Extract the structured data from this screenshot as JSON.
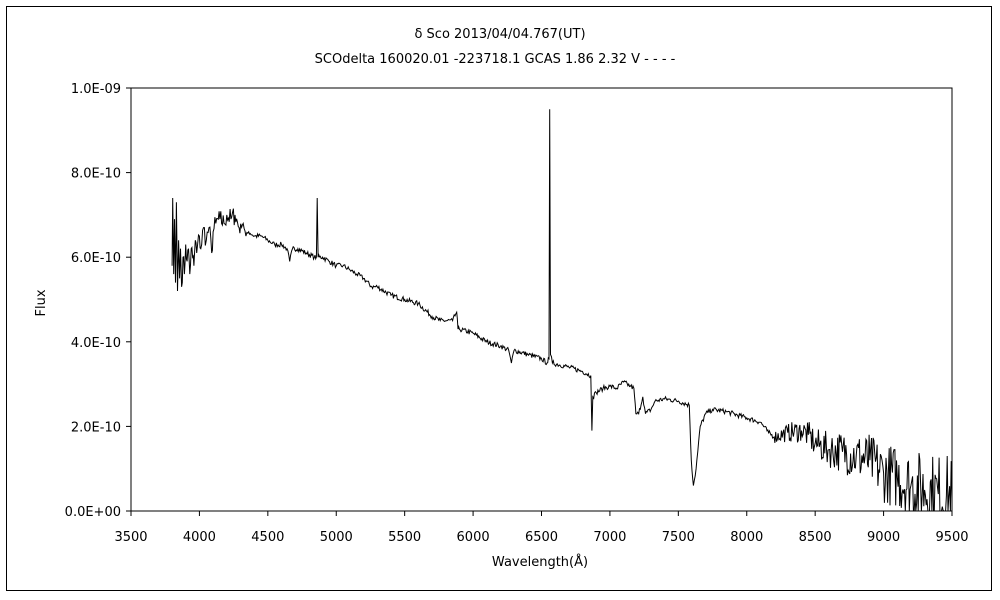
{
  "chart_data": {
    "type": "line",
    "title": "δ  Sco    2013/04/04.767(UT)",
    "subtitle": "SCOdelta 160020.01 -223718.1 GCAS 1.86 2.32 V - - - -",
    "xlabel": "Wavelength(Å)",
    "ylabel": "Flux",
    "xlim": [
      3500,
      9500
    ],
    "ylim": [
      0,
      1e-09
    ],
    "y_unit_scale": 1e-10,
    "grid": false,
    "line_color": "#000000",
    "x_ticks": [
      "3500",
      "4000",
      "4500",
      "5000",
      "5500",
      "6000",
      "6500",
      "7000",
      "7500",
      "8000",
      "8500",
      "9000",
      "9500"
    ],
    "x_tick_values": [
      3500,
      4000,
      4500,
      5000,
      5500,
      6000,
      6500,
      7000,
      7500,
      8000,
      8500,
      9000,
      9500
    ],
    "y_ticks": [
      "0.0E+00",
      "2.0E-10",
      "4.0E-10",
      "6.0E-10",
      "8.0E-10",
      "1.0E-09"
    ],
    "y_tick_values": [
      0,
      2,
      4,
      6,
      8,
      10
    ],
    "series": [
      {
        "name": "Flux",
        "points": [
          [
            3800,
            5.8
          ],
          [
            3805,
            7.4
          ],
          [
            3812,
            5.6
          ],
          [
            3818,
            6.9
          ],
          [
            3825,
            5.4
          ],
          [
            3832,
            7.3
          ],
          [
            3840,
            5.2
          ],
          [
            3848,
            6.4
          ],
          [
            3855,
            5.5
          ],
          [
            3862,
            6.2
          ],
          [
            3870,
            5.3
          ],
          [
            3880,
            6.0
          ],
          [
            3890,
            5.6
          ],
          [
            3900,
            6.3
          ],
          [
            3910,
            5.9
          ],
          [
            3920,
            6.2
          ],
          [
            3930,
            5.6
          ],
          [
            3940,
            6.2
          ],
          [
            3950,
            6.0
          ],
          [
            3960,
            5.8
          ],
          [
            3970,
            6.4
          ],
          [
            3980,
            6.1
          ],
          [
            4000,
            6.5
          ],
          [
            4010,
            6.2
          ],
          [
            4030,
            6.7
          ],
          [
            4050,
            6.4
          ],
          [
            4070,
            6.7
          ],
          [
            4090,
            6.1
          ],
          [
            4100,
            6.6
          ],
          [
            4120,
            6.8
          ],
          [
            4150,
            6.9
          ],
          [
            4180,
            6.8
          ],
          [
            4200,
            7.0
          ],
          [
            4230,
            6.9
          ],
          [
            4260,
            7.0
          ],
          [
            4290,
            6.7
          ],
          [
            4320,
            6.8
          ],
          [
            4340,
            6.5
          ],
          [
            4360,
            6.6
          ],
          [
            4400,
            6.5
          ],
          [
            4450,
            6.5
          ],
          [
            4500,
            6.4
          ],
          [
            4550,
            6.3
          ],
          [
            4600,
            6.3
          ],
          [
            4640,
            6.2
          ],
          [
            4660,
            5.9
          ],
          [
            4680,
            6.2
          ],
          [
            4720,
            6.2
          ],
          [
            4780,
            6.1
          ],
          [
            4840,
            6.0
          ],
          [
            4855,
            6.0
          ],
          [
            4861,
            7.4
          ],
          [
            4867,
            6.0
          ],
          [
            4900,
            6.0
          ],
          [
            4950,
            5.9
          ],
          [
            5000,
            5.8
          ],
          [
            5050,
            5.8
          ],
          [
            5100,
            5.7
          ],
          [
            5150,
            5.6
          ],
          [
            5200,
            5.5
          ],
          [
            5260,
            5.3
          ],
          [
            5300,
            5.3
          ],
          [
            5400,
            5.1
          ],
          [
            5500,
            5.0
          ],
          [
            5600,
            4.9
          ],
          [
            5700,
            4.6
          ],
          [
            5760,
            4.5
          ],
          [
            5850,
            4.5
          ],
          [
            5880,
            4.7
          ],
          [
            5890,
            4.3
          ],
          [
            5900,
            4.3
          ],
          [
            6000,
            4.2
          ],
          [
            6100,
            4.0
          ],
          [
            6200,
            3.9
          ],
          [
            6260,
            3.8
          ],
          [
            6280,
            3.5
          ],
          [
            6300,
            3.8
          ],
          [
            6400,
            3.7
          ],
          [
            6500,
            3.6
          ],
          [
            6540,
            3.5
          ],
          [
            6555,
            3.6
          ],
          [
            6560,
            9.5
          ],
          [
            6566,
            3.7
          ],
          [
            6580,
            3.5
          ],
          [
            6700,
            3.4
          ],
          [
            6800,
            3.3
          ],
          [
            6860,
            3.2
          ],
          [
            6868,
            1.9
          ],
          [
            6875,
            2.7
          ],
          [
            6900,
            2.8
          ],
          [
            6950,
            2.9
          ],
          [
            7000,
            2.95
          ],
          [
            7050,
            2.9
          ],
          [
            7100,
            3.05
          ],
          [
            7150,
            2.95
          ],
          [
            7175,
            2.9
          ],
          [
            7190,
            2.3
          ],
          [
            7210,
            2.3
          ],
          [
            7240,
            2.7
          ],
          [
            7260,
            2.3
          ],
          [
            7300,
            2.4
          ],
          [
            7330,
            2.6
          ],
          [
            7400,
            2.65
          ],
          [
            7500,
            2.6
          ],
          [
            7580,
            2.5
          ],
          [
            7595,
            1.2
          ],
          [
            7610,
            0.6
          ],
          [
            7630,
            1.0
          ],
          [
            7660,
            2.0
          ],
          [
            7700,
            2.3
          ],
          [
            7750,
            2.4
          ],
          [
            7850,
            2.35
          ],
          [
            8000,
            2.2
          ],
          [
            8100,
            2.1
          ],
          [
            8160,
            1.85
          ],
          [
            8200,
            1.75
          ],
          [
            8300,
            1.85
          ],
          [
            8400,
            1.9
          ],
          [
            8450,
            1.8
          ],
          [
            8500,
            1.6
          ],
          [
            8600,
            1.45
          ],
          [
            8700,
            1.4
          ],
          [
            8800,
            1.3
          ],
          [
            8900,
            1.2
          ],
          [
            9000,
            0.9
          ],
          [
            9100,
            0.8
          ],
          [
            9200,
            0.6
          ],
          [
            9300,
            0.5
          ],
          [
            9400,
            0.4
          ],
          [
            9500,
            0.3
          ]
        ]
      }
    ]
  }
}
